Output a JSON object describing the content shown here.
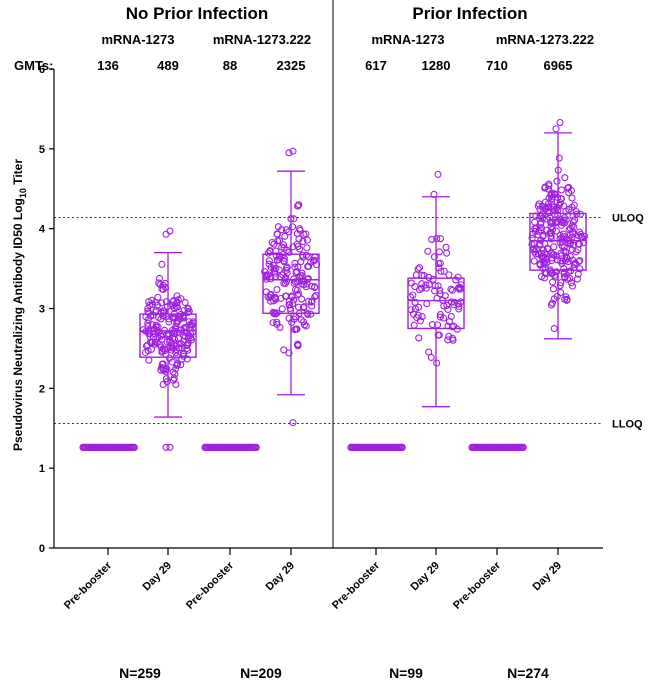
{
  "chart_data": {
    "type": "scatter",
    "ylabel_main": "Pseudovirus Neutralizing Antibody ID50 Log",
    "ylabel_sub": "10",
    "ylabel_tail": " Titer",
    "ylim": [
      0,
      6
    ],
    "yticks": [
      "0",
      "1",
      "2",
      "3",
      "4",
      "5",
      "6"
    ],
    "gmt_label": "GMTs:",
    "panels": [
      {
        "title": "No Prior Infection",
        "vaccines": [
          "mRNA-1273",
          "mRNA-1273.222"
        ]
      },
      {
        "title": "Prior Infection",
        "vaccines": [
          "mRNA-1273",
          "mRNA-1273.222"
        ]
      }
    ],
    "categories": [
      "Pre-booster",
      "Day 29",
      "Pre-booster",
      "Day 29",
      "Pre-booster",
      "Day 29",
      "Pre-booster",
      "Day 29"
    ],
    "gmts": [
      "136",
      "489",
      "88",
      "2325",
      "617",
      "1280",
      "710",
      "6965"
    ],
    "n_labels": [
      "N=259",
      "N=209",
      "N=99",
      "N=274"
    ],
    "reference_lines": [
      {
        "label": "ULOQ",
        "value": 4.14
      },
      {
        "label": "LLOQ",
        "value": 1.56
      }
    ],
    "marker_color": "#a020e0",
    "groups": [
      {
        "category": "Pre-booster",
        "lloq_strip": true,
        "value": 1.26
      },
      {
        "category": "Day 29",
        "min": 1.64,
        "q1": 2.39,
        "median": 2.72,
        "q3": 2.93,
        "max": 3.7,
        "outliers": [
          3.97,
          3.93,
          1.26,
          1.26
        ],
        "n_points": 200
      },
      {
        "category": "Pre-booster",
        "lloq_strip": true,
        "value": 1.26
      },
      {
        "category": "Day 29",
        "min": 1.92,
        "q1": 2.94,
        "median": 3.36,
        "q3": 3.68,
        "max": 4.72,
        "outliers": [
          4.97,
          4.95,
          1.57
        ],
        "n_points": 180
      },
      {
        "category": "Pre-booster",
        "lloq_strip": true,
        "value": 1.26
      },
      {
        "category": "Day 29",
        "min": 1.77,
        "q1": 2.75,
        "median": 3.1,
        "q3": 3.38,
        "max": 4.4,
        "outliers": [
          4.68,
          4.43
        ],
        "n_points": 90
      },
      {
        "category": "Pre-booster",
        "lloq_strip": true,
        "value": 1.26
      },
      {
        "category": "Day 29",
        "min": 2.62,
        "q1": 3.48,
        "median": 3.85,
        "q3": 4.19,
        "max": 5.2,
        "outliers": [
          5.33,
          5.25
        ],
        "n_points": 240
      }
    ]
  }
}
